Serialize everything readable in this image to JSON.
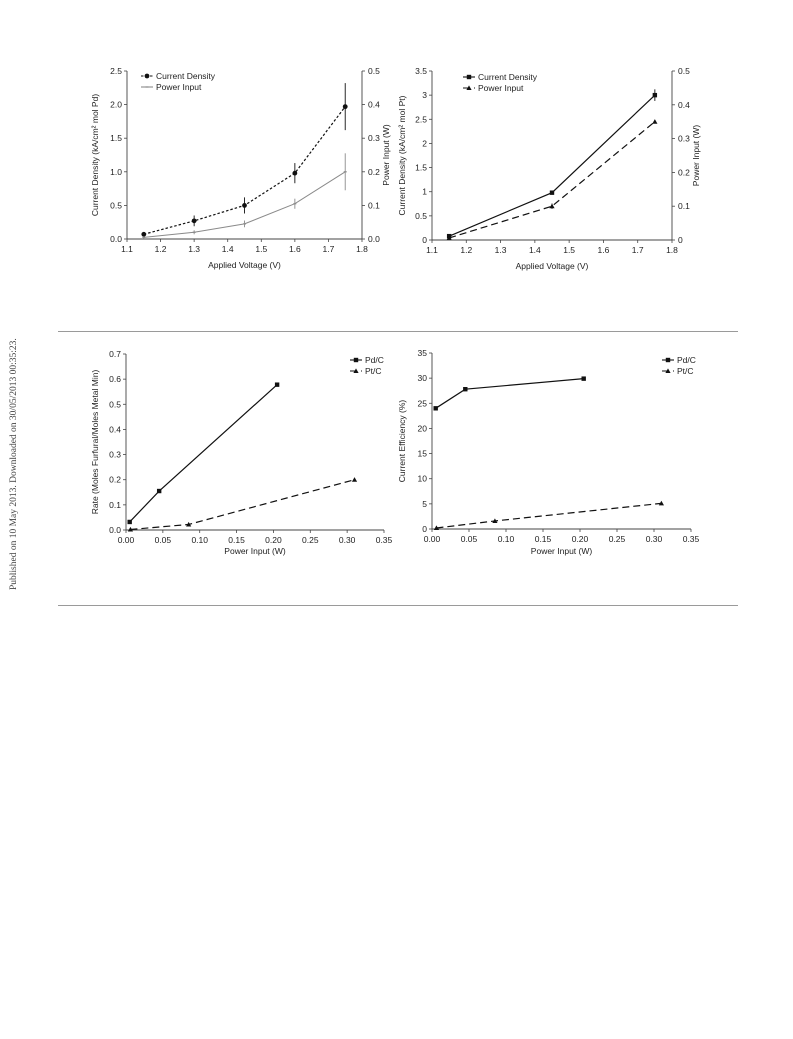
{
  "side_note": "Published on 10 May 2013. Downloaded on 30/05/2013 00:35:23.",
  "colors": {
    "axis": "#444444",
    "series_dark": "#111111",
    "series_gray": "#8a8a8a",
    "rule": "#9a9a9a"
  },
  "chart_data": [
    {
      "type": "line",
      "title": "",
      "xlabel": "Applied Voltage (V)",
      "ylabel": "Current Density (kA/cm² mol Pd)",
      "y2label": "Power Input (W)",
      "xlim": [
        1.1,
        1.8
      ],
      "ylim": [
        0,
        2.5
      ],
      "y2lim": [
        0,
        0.5
      ],
      "xticks": [
        "1.1",
        "1.2",
        "1.3",
        "1.4",
        "1.5",
        "1.6",
        "1.7",
        "1.8"
      ],
      "yticks": [
        "0.0",
        "0.5",
        "1.0",
        "1.5",
        "2.0",
        "2.5"
      ],
      "y2ticks": [
        "0.0",
        "0.1",
        "0.2",
        "0.3",
        "0.4",
        "0.5"
      ],
      "legend": "top-left",
      "series": [
        {
          "name": "Current Density",
          "axis": "left",
          "style": "dotted",
          "color": "#111111",
          "marker": "circle",
          "x": [
            1.15,
            1.3,
            1.45,
            1.6,
            1.75
          ],
          "y": [
            0.07,
            0.27,
            0.5,
            0.98,
            1.97
          ],
          "err": [
            0.03,
            0.08,
            0.12,
            0.15,
            0.35
          ]
        },
        {
          "name": "Power Input",
          "axis": "right",
          "style": "solid",
          "color": "#8a8a8a",
          "marker": "small",
          "x": [
            1.15,
            1.3,
            1.45,
            1.6,
            1.75
          ],
          "y": [
            0.005,
            0.02,
            0.045,
            0.105,
            0.2
          ],
          "err": [
            0.003,
            0.006,
            0.01,
            0.015,
            0.055
          ]
        }
      ]
    },
    {
      "type": "line",
      "title": "",
      "xlabel": "Applied Voltage (V)",
      "ylabel": "Current Density (kA/cm² mol Pt)",
      "y2label": "Power Input (W)",
      "xlim": [
        1.1,
        1.8
      ],
      "ylim": [
        0,
        3.5
      ],
      "y2lim": [
        0,
        0.5
      ],
      "xticks": [
        "1.1",
        "1.2",
        "1.3",
        "1.4",
        "1.5",
        "1.6",
        "1.7",
        "1.8"
      ],
      "yticks": [
        "0",
        "0.5",
        "1",
        "1.5",
        "2",
        "2.5",
        "3",
        "3.5"
      ],
      "y2ticks": [
        "0",
        "0.1",
        "0.2",
        "0.3",
        "0.4",
        "0.5"
      ],
      "legend": "top-left",
      "series": [
        {
          "name": "Current Density",
          "axis": "left",
          "style": "solid",
          "color": "#111111",
          "marker": "square",
          "x": [
            1.15,
            1.45,
            1.75
          ],
          "y": [
            0.08,
            0.98,
            3.0
          ],
          "err": [
            0.02,
            0.04,
            0.12
          ]
        },
        {
          "name": "Power Input",
          "axis": "right",
          "style": "dashed",
          "color": "#111111",
          "marker": "triangle",
          "x": [
            1.15,
            1.45,
            1.75
          ],
          "y": [
            0.006,
            0.1,
            0.35
          ],
          "err": [
            0.002,
            0.008,
            0.005
          ]
        }
      ]
    },
    {
      "type": "line",
      "title": "",
      "xlabel": "Power Input (W)",
      "ylabel": "Rate (Moles Furfural/Moles Metal Min)",
      "xlim": [
        0,
        0.35
      ],
      "ylim": [
        0,
        0.7
      ],
      "xticks": [
        "0.00",
        "0.05",
        "0.10",
        "0.15",
        "0.20",
        "0.25",
        "0.30",
        "0.35"
      ],
      "yticks": [
        "0.0",
        "0.1",
        "0.2",
        "0.3",
        "0.4",
        "0.5",
        "0.6",
        "0.7"
      ],
      "legend": "top-right",
      "series": [
        {
          "name": "Pd/C",
          "axis": "left",
          "style": "solid",
          "color": "#111111",
          "marker": "square",
          "x": [
            0.005,
            0.045,
            0.205
          ],
          "y": [
            0.032,
            0.155,
            0.578
          ]
        },
        {
          "name": "Pt/C",
          "axis": "left",
          "style": "dashed",
          "color": "#111111",
          "marker": "triangle",
          "x": [
            0.006,
            0.085,
            0.31
          ],
          "y": [
            0.002,
            0.022,
            0.2
          ]
        }
      ]
    },
    {
      "type": "line",
      "title": "",
      "xlabel": "Power Input (W)",
      "ylabel": "Current Efficiency (%)",
      "xlim": [
        0,
        0.35
      ],
      "ylim": [
        0,
        35
      ],
      "xticks": [
        "0.00",
        "0.05",
        "0.10",
        "0.15",
        "0.20",
        "0.25",
        "0.30",
        "0.35"
      ],
      "yticks": [
        "0",
        "5",
        "10",
        "15",
        "20",
        "25",
        "30",
        "35"
      ],
      "legend": "top-right",
      "series": [
        {
          "name": "Pd/C",
          "axis": "left",
          "style": "solid",
          "color": "#111111",
          "marker": "square",
          "x": [
            0.005,
            0.045,
            0.205
          ],
          "y": [
            24.0,
            27.8,
            29.9
          ]
        },
        {
          "name": "Pt/C",
          "axis": "left",
          "style": "dashed",
          "color": "#111111",
          "marker": "triangle",
          "x": [
            0.006,
            0.085,
            0.31
          ],
          "y": [
            0.2,
            1.6,
            5.1
          ]
        }
      ]
    }
  ]
}
